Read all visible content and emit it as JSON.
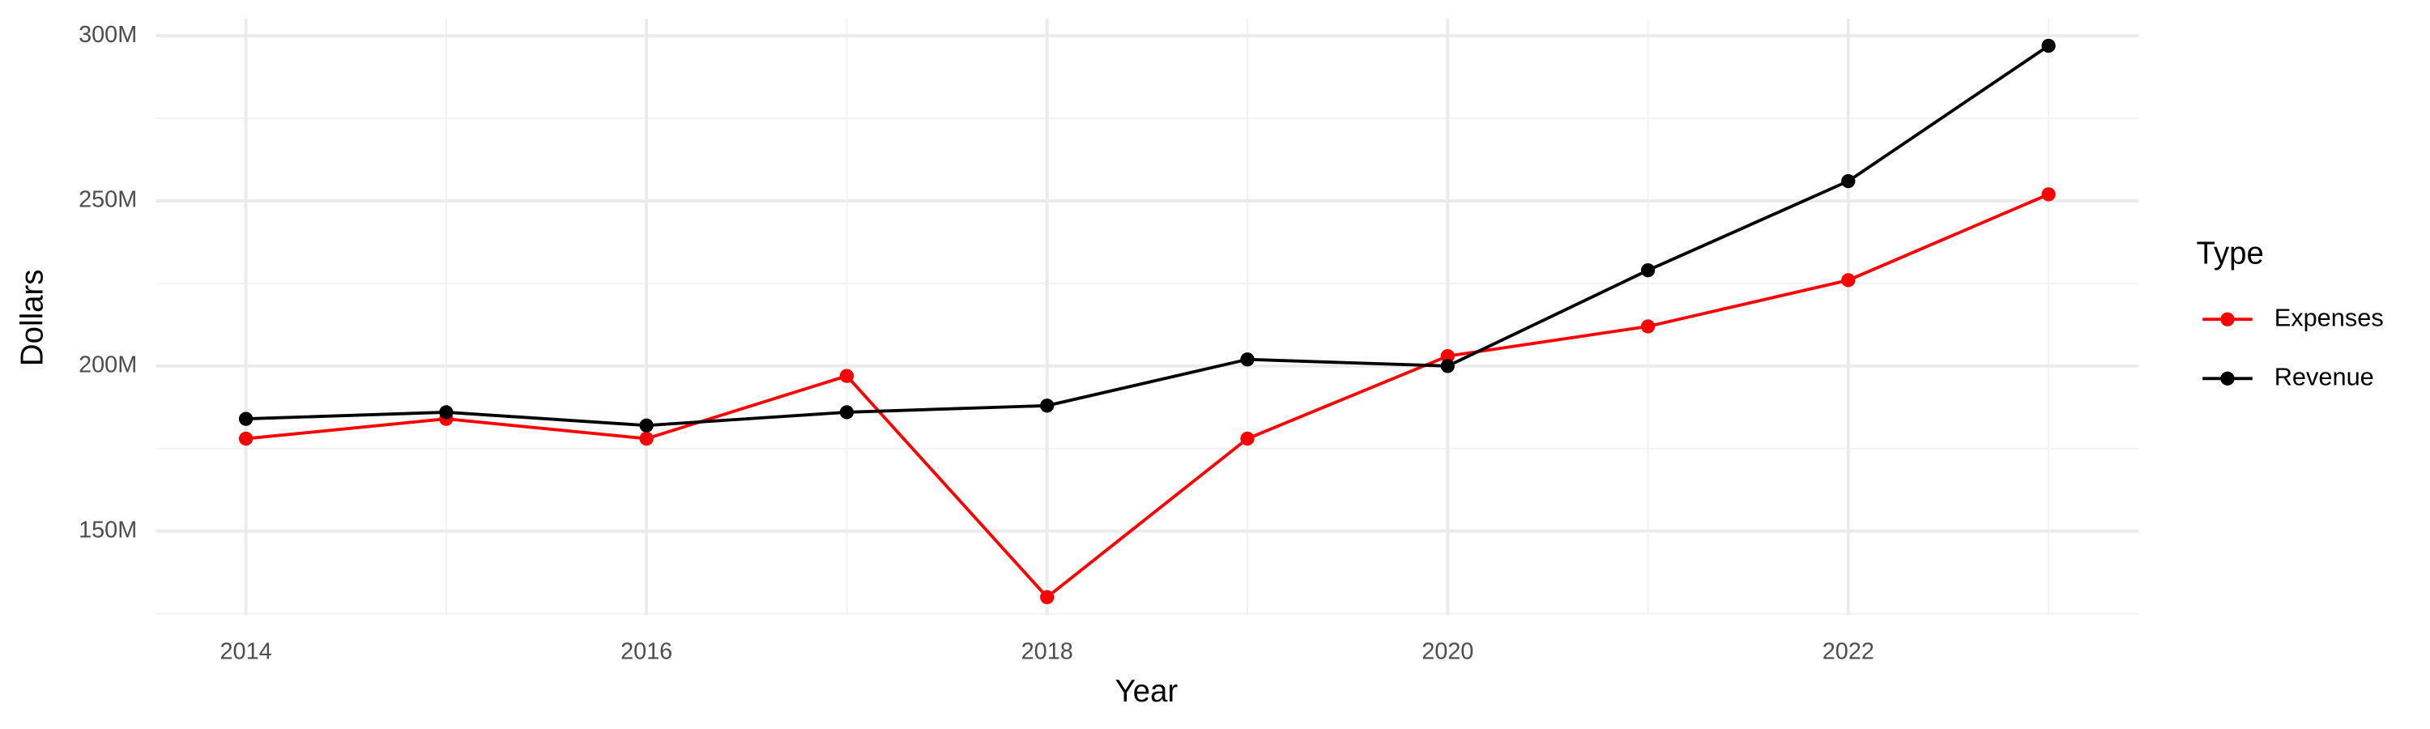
{
  "chart_data": {
    "type": "line",
    "x_label": "Year",
    "y_label": "Dollars",
    "legend_title": "Type",
    "x": [
      2014,
      2015,
      2016,
      2017,
      2018,
      2019,
      2020,
      2021,
      2022,
      2023
    ],
    "series": [
      {
        "name": "Expenses",
        "color": "#ff0000",
        "values": [
          178000000,
          184000000,
          178000000,
          197000000,
          130000000,
          178000000,
          203000000,
          212000000,
          226000000,
          252000000
        ]
      },
      {
        "name": "Revenue",
        "color": "#000000",
        "values": [
          184000000,
          186000000,
          182000000,
          186000000,
          188000000,
          202000000,
          200000000,
          229000000,
          256000000,
          297000000
        ]
      }
    ],
    "xlim": [
      2013.55,
      2023.45
    ],
    "xticks": [
      2014,
      2016,
      2018,
      2020,
      2022
    ],
    "ylim": [
      124500000,
      305200000
    ],
    "yticks": [
      {
        "value": 150000000,
        "label": "150M"
      },
      {
        "value": 200000000,
        "label": "200M"
      },
      {
        "value": 250000000,
        "label": "250M"
      },
      {
        "value": 300000000,
        "label": "300M"
      }
    ],
    "grid": true,
    "legend_position": "right"
  }
}
